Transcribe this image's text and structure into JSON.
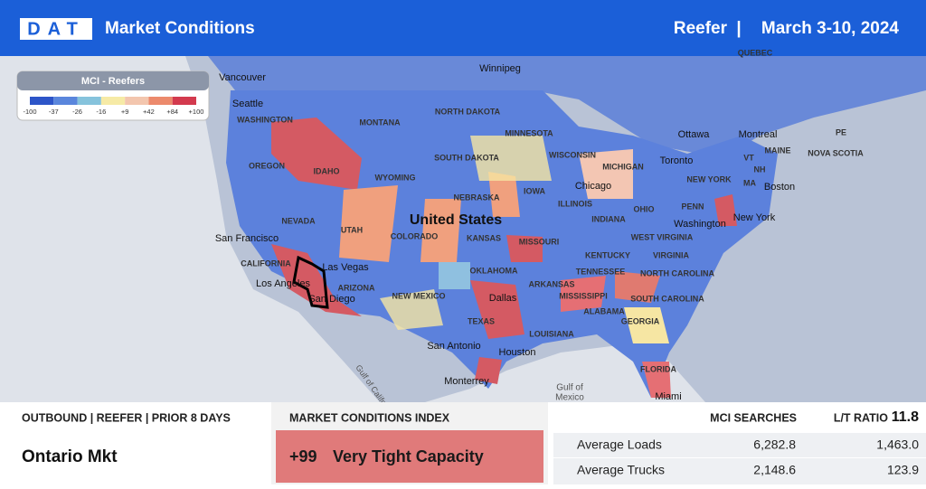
{
  "header": {
    "logo": "DAT",
    "title": "Market Conditions",
    "equipment": "Reefer",
    "separator": "|",
    "dates": "March 3-10, 2024"
  },
  "legend": {
    "title": "MCI - Reefers",
    "ticks": [
      "-100",
      "-37",
      "-26",
      "-16",
      "+9",
      "+42",
      "+84",
      "+100"
    ]
  },
  "map": {
    "labels": [
      "Winnipeg",
      "QUEBEC",
      "Vancouver",
      "Seattle",
      "WASHINGTON",
      "MONTANA",
      "NORTH DAKOTA",
      "MINNESOTA",
      "Ottawa",
      "Montreal",
      "MAINE",
      "PE",
      "NOVA SCOTIA",
      "OREGON",
      "IDAHO",
      "WYOMING",
      "SOUTH DAKOTA",
      "WISCONSIN",
      "MICHIGAN",
      "Toronto",
      "NEW YORK",
      "VT",
      "NH",
      "MA",
      "Boston",
      "NEBRASKA",
      "IOWA",
      "Chicago",
      "ILLINOIS",
      "INDIANA",
      "OHIO",
      "PENN",
      "New York",
      "NEVADA",
      "UTAH",
      "United States",
      "COLORADO",
      "KANSAS",
      "MISSOURI",
      "San Francisco",
      "Washington",
      "WEST VIRGINIA",
      "VIRGINIA",
      "KENTUCKY",
      "CALIFORNIA",
      "Las Vegas",
      "OKLAHOMA",
      "TENNESSEE",
      "NORTH CAROLINA",
      "Los Angeles",
      "ARIZONA",
      "NEW MEXICO",
      "ARKANSAS",
      "San Diego",
      "Dallas",
      "MISSISSIPPI",
      "SOUTH CAROLINA",
      "ALABAMA",
      "GEORGIA",
      "TEXAS",
      "LOUISIANA",
      "San Antonio",
      "Houston",
      "Gulf of California",
      "Monterrey",
      "Gulf of",
      "Mexico",
      "FLORIDA",
      "Miami"
    ]
  },
  "outbound": {
    "heading": "OUTBOUND | REEFER | PRIOR 8 DAYS",
    "market": "Ontario Mkt"
  },
  "mci": {
    "heading": "MARKET CONDITIONS INDEX",
    "value": "+99",
    "status": "Very Tight Capacity"
  },
  "stats": {
    "headers": [
      "MCI SEARCHES",
      "L/T RATIO"
    ],
    "ratio": "11.8",
    "rows": [
      [
        "Average Loads",
        "6,282.8",
        "1,463.0"
      ],
      [
        "Average Trucks",
        "2,148.6",
        "123.9"
      ]
    ]
  }
}
